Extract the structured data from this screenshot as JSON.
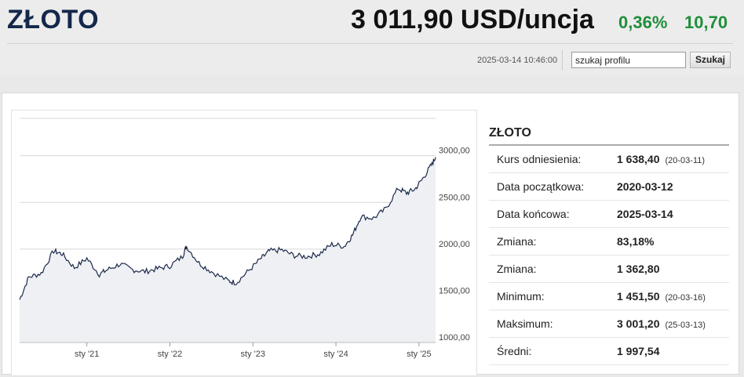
{
  "header": {
    "title": "ZŁOTO",
    "price": "3 011,90 USD/uncja",
    "change_pct": "0,36%",
    "change_abs": "10,70",
    "timestamp": "2025-03-14 10:46:00",
    "search_value": "szukaj profilu",
    "search_button": "Szukaj"
  },
  "colors": {
    "accent_up": "#1f8f3a",
    "title": "#14284b",
    "line": "#1c2a4a",
    "area": "#eef0f4"
  },
  "info": {
    "title": "ZŁOTO",
    "rows": [
      {
        "label": "Kurs odniesienia:",
        "value": "1 638,40",
        "date": "(20-03-11)"
      },
      {
        "label": "Data początkowa:",
        "value": "2020-03-12",
        "date": ""
      },
      {
        "label": "Data końcowa:",
        "value": "2025-03-14",
        "date": ""
      },
      {
        "label": "Zmiana:",
        "value": "83,18%",
        "date": ""
      },
      {
        "label": "Zmiana:",
        "value": "1 362,80",
        "date": ""
      },
      {
        "label": "Minimum:",
        "value": "1 451,50",
        "date": "(20-03-16)"
      },
      {
        "label": "Maksimum:",
        "value": "3 001,20",
        "date": "(25-03-13)"
      },
      {
        "label": "Średni:",
        "value": "1 997,54",
        "date": ""
      }
    ]
  },
  "chart_data": {
    "type": "area",
    "y_ticks": [
      "3000,00",
      "2500,00",
      "2000,00",
      "1500,00",
      "1000,00"
    ],
    "x_ticks": [
      "sty '21",
      "sty '22",
      "sty '23",
      "sty '24",
      "sty '25"
    ],
    "ylim": [
      1000,
      3400
    ],
    "x": [
      2020.19,
      2020.3,
      2020.45,
      2020.6,
      2020.7,
      2020.85,
      2021.0,
      2021.15,
      2021.25,
      2021.4,
      2021.55,
      2021.7,
      2021.85,
      2022.0,
      2022.15,
      2022.2,
      2022.35,
      2022.5,
      2022.7,
      2022.8,
      2022.95,
      2023.1,
      2023.2,
      2023.35,
      2023.5,
      2023.65,
      2023.8,
      2023.95,
      2024.1,
      2024.2,
      2024.3,
      2024.45,
      2024.6,
      2024.75,
      2024.85,
      2024.95,
      2025.05,
      2025.15,
      2025.2
    ],
    "y": [
      1460,
      1700,
      1740,
      1980,
      1950,
      1800,
      1900,
      1730,
      1780,
      1840,
      1780,
      1760,
      1790,
      1820,
      1920,
      2030,
      1850,
      1760,
      1660,
      1640,
      1770,
      1900,
      1980,
      1990,
      1930,
      1920,
      1950,
      2050,
      2030,
      2150,
      2350,
      2330,
      2430,
      2650,
      2600,
      2640,
      2760,
      2900,
      2985
    ]
  }
}
